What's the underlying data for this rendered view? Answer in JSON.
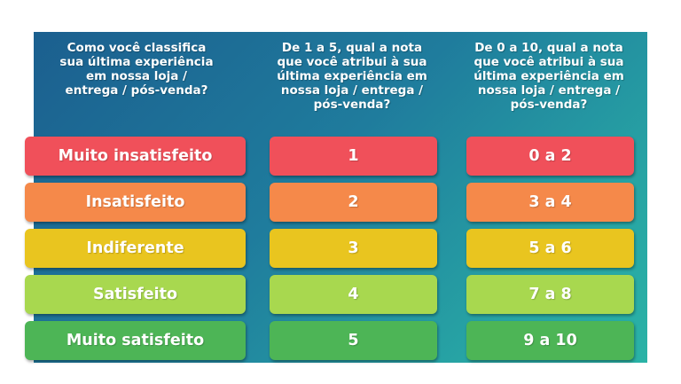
{
  "headers": [
    "Como você classifica\nsua última experiência\nem nossa loja /\nentrega / pós-venda?",
    "De 1 a 5, qual a nota\nque você atribui à sua\núltima experiência em\nnossa loja / entrega /\npós-venda?",
    "De 0 a 10, qual a nota\nque você atribui à sua\núltima experiência em\nnossa loja / entrega /\npós-venda?"
  ],
  "rows": [
    {
      "label": "Muito insatisfeito",
      "scale5": "1",
      "scale10": "0 a 2",
      "color": "#f0505a"
    },
    {
      "label": "Insatisfeito",
      "scale5": "2",
      "scale10": "3 a 4",
      "color": "#f5894a"
    },
    {
      "label": "Indiferente",
      "scale5": "3",
      "scale10": "5 a 6",
      "color": "#e9c51f"
    },
    {
      "label": "Satisfeito",
      "scale5": "4",
      "scale10": "7 a 8",
      "color": "#a8d84f"
    },
    {
      "label": "Muito satisfeito",
      "scale5": "5",
      "scale10": "9 a 10",
      "color": "#4db556"
    }
  ]
}
